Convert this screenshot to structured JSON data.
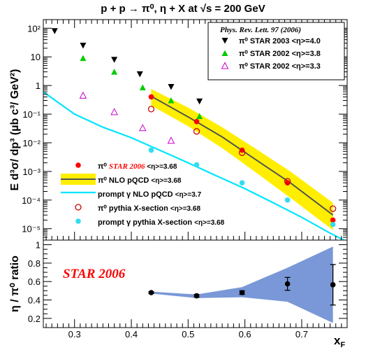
{
  "title": "p + p → π⁰, η + X at √s = 200 GeV",
  "chart_data": [
    {
      "type": "scatter",
      "panel": "top",
      "ylabel": "E d³σ/ dp³ (µb c³/ GeV²)",
      "yscale": "log",
      "ylim": [
        4e-06,
        200
      ],
      "xlim": [
        0.245,
        0.78
      ],
      "yticks": [
        "10⁻⁵",
        "10⁻⁴",
        "10⁻³",
        "10⁻²",
        "10⁻¹",
        "1",
        "10",
        "10²"
      ],
      "reference_box": {
        "line1": "Phys. Rev. Lett. 97  (2006)",
        "entries": [
          {
            "symbol": "down-triangle",
            "color": "#000000",
            "label": "π⁰  STAR 2003   <η>=4.0"
          },
          {
            "symbol": "up-triangle",
            "color": "#00cc00",
            "label": "π⁰  STAR 2002   <η>=3.8"
          },
          {
            "symbol": "open-up-triangle",
            "color": "#cc00cc",
            "label": "π⁰  STAR 2002   <η>=3.3"
          }
        ]
      },
      "legend": {
        "placement": "bottom-left",
        "entries": [
          {
            "symbol": "red-dot",
            "prefix": "π⁰",
            "label": "STAR 2006",
            "suffix": "<η>=3.68"
          },
          {
            "symbol": "yellow-band",
            "prefix": "π⁰",
            "label": "NLO pQCD",
            "suffix": "<η>=3.68"
          },
          {
            "symbol": "cyan-line",
            "prefix": "",
            "label": "prompt γ   NLO pQCD",
            "suffix": "<η>=3.7"
          },
          {
            "symbol": "open-red-circle",
            "prefix": "π⁰",
            "label": "pythia X-section",
            "suffix": "<η>=3.68"
          },
          {
            "symbol": "cyan-dot",
            "prefix": "",
            "label": "prompt γ   pythia X-section",
            "suffix": "<η>=3.68"
          }
        ]
      },
      "series": [
        {
          "name": "π⁰ STAR 2003 <η>=4.0",
          "marker": "down-triangle",
          "color": "#000000",
          "x": [
            0.265,
            0.315,
            0.37,
            0.415,
            0.47,
            0.52
          ],
          "y": [
            80,
            25,
            8,
            2.5,
            0.9,
            0.28
          ]
        },
        {
          "name": "π⁰ STAR 2002 <η>=3.8",
          "marker": "up-triangle",
          "color": "#00cc00",
          "x": [
            0.315,
            0.37,
            0.42,
            0.47,
            0.52
          ],
          "y": [
            9,
            3,
            0.85,
            0.3,
            0.085
          ]
        },
        {
          "name": "π⁰ STAR 2002 <η>=3.3",
          "marker": "open-up-triangle",
          "color": "#cc00cc",
          "x": [
            0.315,
            0.37,
            0.42,
            0.47
          ],
          "y": [
            0.45,
            0.12,
            0.033,
            0.012
          ]
        },
        {
          "name": "π⁰ STAR 2006 <η>=3.68",
          "marker": "dot",
          "color": "#ff0000",
          "x": [
            0.435,
            0.515,
            0.595,
            0.675,
            0.755
          ],
          "y": [
            0.4,
            0.055,
            0.0055,
            0.0004,
            2e-05
          ]
        },
        {
          "name": "π⁰ pythia X-section <η>=3.68",
          "marker": "open-circle",
          "color": "#cc0000",
          "x": [
            0.435,
            0.515,
            0.595,
            0.675,
            0.755
          ],
          "y": [
            0.15,
            0.025,
            0.0045,
            0.00045,
            5e-05
          ]
        },
        {
          "name": "prompt γ pythia X-section <η>=3.68",
          "marker": "dot",
          "color": "#33ddee",
          "x": [
            0.435,
            0.515,
            0.595,
            0.675,
            0.755
          ],
          "y": [
            0.0055,
            0.0017,
            0.0004,
            0.0001,
            1.4e-05
          ]
        }
      ],
      "curves": [
        {
          "name": "π⁰ NLO pQCD <η>=3.68",
          "color": "#555555",
          "x": [
            0.435,
            0.5,
            0.56,
            0.62,
            0.68,
            0.755
          ],
          "y": [
            0.42,
            0.08,
            0.016,
            0.0025,
            0.0004,
            3e-05
          ]
        },
        {
          "name": "prompt γ NLO pQCD <η>=3.7",
          "color": "#00e5ff",
          "x": [
            0.245,
            0.3,
            0.35,
            0.4,
            0.45,
            0.5,
            0.55,
            0.6,
            0.65,
            0.7,
            0.75,
            0.78
          ],
          "y": [
            0.6,
            0.1,
            0.035,
            0.015,
            0.0055,
            0.002,
            0.0007,
            0.00025,
            8e-05,
            2.5e-05,
            7e-06,
            3.5e-06
          ]
        }
      ],
      "bands": [
        {
          "name": "π⁰ NLO pQCD band",
          "color": "#ffee00",
          "x": [
            0.435,
            0.5,
            0.56,
            0.62,
            0.68,
            0.755
          ],
          "y_low": [
            0.2,
            0.038,
            0.0065,
            0.0009,
            0.00012,
            9e-06
          ],
          "y_high": [
            0.75,
            0.17,
            0.035,
            0.006,
            0.001,
            8e-05
          ]
        }
      ]
    },
    {
      "type": "scatter",
      "panel": "bottom",
      "ylabel": "η / π⁰ ratio",
      "xlabel": "x",
      "xlabel_sub": "F",
      "xlim": [
        0.245,
        0.78
      ],
      "ylim": [
        0.1,
        1.05
      ],
      "xticks": [
        "0.3",
        "0.4",
        "0.5",
        "0.6",
        "0.7"
      ],
      "yticks": [
        "0.2",
        "0.4",
        "0.6",
        "0.8",
        "1"
      ],
      "annotation": "STAR 2006",
      "series": [
        {
          "name": "η/π⁰ ratio",
          "marker": "dot",
          "color": "#000000",
          "x": [
            0.435,
            0.515,
            0.595,
            0.675,
            0.755
          ],
          "y": [
            0.48,
            0.445,
            0.48,
            0.575,
            0.565
          ],
          "yerr": [
            0.01,
            0.015,
            0.02,
            0.07,
            0.22
          ]
        }
      ],
      "bands": [
        {
          "name": "ratio band",
          "color": "#7a98d8",
          "x": [
            0.435,
            0.515,
            0.595,
            0.675,
            0.755
          ],
          "y_low": [
            0.47,
            0.42,
            0.43,
            0.38,
            0.15
          ],
          "y_high": [
            0.49,
            0.46,
            0.54,
            0.75,
            0.98
          ]
        }
      ]
    }
  ]
}
